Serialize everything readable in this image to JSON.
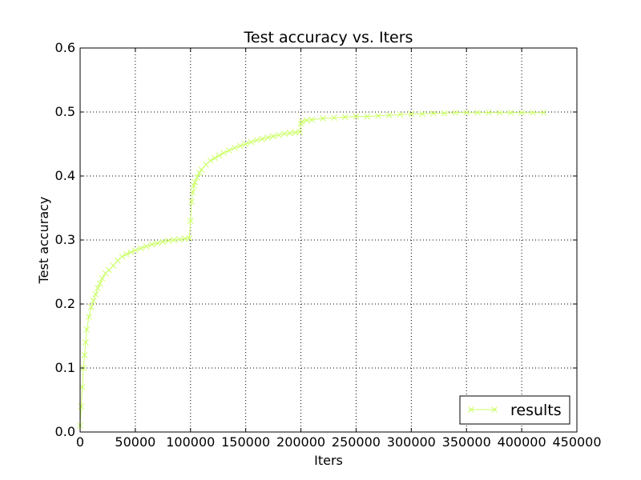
{
  "chart_data": {
    "type": "line",
    "title": "Test accuracy  vs. Iters",
    "xlabel": "Iters",
    "ylabel": "Test accuracy",
    "xlim": [
      0,
      450000
    ],
    "ylim": [
      0,
      0.6
    ],
    "xticks": [
      0,
      50000,
      100000,
      150000,
      200000,
      250000,
      300000,
      350000,
      400000,
      450000
    ],
    "xtick_labels": [
      "0",
      "50000",
      "100000",
      "150000",
      "200000",
      "250000",
      "300000",
      "350000",
      "400000",
      "450000"
    ],
    "yticks": [
      0.0,
      0.1,
      0.2,
      0.3,
      0.4,
      0.5,
      0.6
    ],
    "ytick_labels": [
      "0.0",
      "0.1",
      "0.2",
      "0.3",
      "0.4",
      "0.5",
      "0.6"
    ],
    "grid": true,
    "legend_position": "bottom-right",
    "series": [
      {
        "name": "results",
        "color": "#ccff66",
        "marker": "x",
        "x": [
          0,
          1000,
          2000,
          3000,
          4000,
          5000,
          6000,
          8000,
          10000,
          12000,
          14000,
          16000,
          18000,
          20000,
          23000,
          26000,
          30000,
          34000,
          38000,
          42000,
          46000,
          50000,
          55000,
          60000,
          65000,
          70000,
          75000,
          80000,
          85000,
          90000,
          95000,
          99000,
          100000,
          101000,
          102000,
          103000,
          104000,
          106000,
          108000,
          110000,
          114000,
          118000,
          122000,
          126000,
          130000,
          135000,
          140000,
          145000,
          150000,
          155000,
          160000,
          165000,
          170000,
          175000,
          180000,
          185000,
          190000,
          195000,
          199000,
          200000,
          201000,
          205000,
          210000,
          220000,
          230000,
          240000,
          250000,
          260000,
          270000,
          280000,
          290000,
          300000,
          310000,
          320000,
          330000,
          340000,
          350000,
          360000,
          370000,
          380000,
          390000,
          400000,
          410000,
          420000
        ],
        "y": [
          0.01,
          0.04,
          0.07,
          0.1,
          0.12,
          0.14,
          0.16,
          0.18,
          0.195,
          0.205,
          0.215,
          0.225,
          0.232,
          0.24,
          0.248,
          0.253,
          0.26,
          0.268,
          0.274,
          0.278,
          0.281,
          0.284,
          0.287,
          0.29,
          0.293,
          0.295,
          0.297,
          0.299,
          0.3,
          0.301,
          0.302,
          0.303,
          0.33,
          0.36,
          0.375,
          0.385,
          0.39,
          0.398,
          0.405,
          0.41,
          0.418,
          0.424,
          0.428,
          0.432,
          0.436,
          0.44,
          0.444,
          0.447,
          0.45,
          0.453,
          0.456,
          0.458,
          0.46,
          0.462,
          0.464,
          0.466,
          0.467,
          0.468,
          0.469,
          0.482,
          0.485,
          0.487,
          0.488,
          0.49,
          0.491,
          0.492,
          0.493,
          0.493,
          0.494,
          0.495,
          0.496,
          0.497,
          0.497,
          0.498,
          0.498,
          0.499,
          0.499,
          0.499,
          0.499,
          0.499,
          0.499,
          0.499,
          0.499,
          0.499
        ]
      }
    ]
  }
}
